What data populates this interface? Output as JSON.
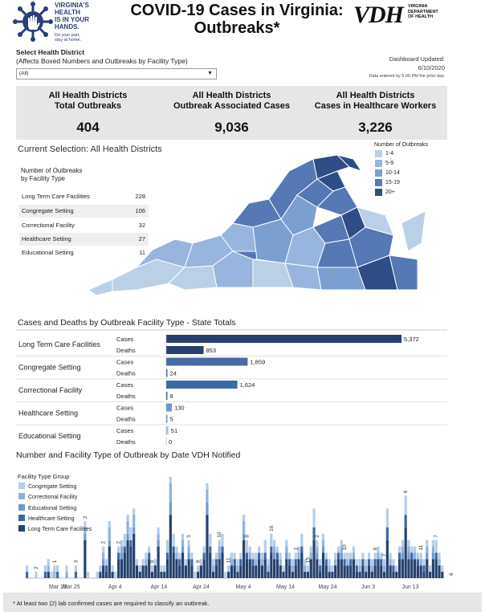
{
  "header": {
    "logo_lines": [
      "VIRGINIA'S",
      "HEALTH",
      "IS IN YOUR",
      "HANDS."
    ],
    "logo_small": [
      "Do your part,",
      "stay at home."
    ],
    "title_line1": "COVID-19 Cases in Virginia:",
    "title_line2": "Outbreaks*",
    "vdh_mark": "VDH",
    "vdh_sub": [
      "VIRGINIA",
      "DEPARTMENT",
      "OF HEALTH"
    ]
  },
  "filter": {
    "label": "Select Health District",
    "sublabel": "(Affects Boxed Numbers and Outbreaks by Facility Type)",
    "selected": "(All)"
  },
  "updated": {
    "label": "Dashboard Updated:",
    "date": "6/10/2020",
    "note": "Data entered by 5:00 PM the prior day."
  },
  "kpis": [
    {
      "line1": "All Health Districts",
      "line2": "Total Outbreaks",
      "value": "404"
    },
    {
      "line1": "All Health Districts",
      "line2": "Outbreak Associated Cases",
      "value": "9,036"
    },
    {
      "line1": "All Health Districts",
      "line2": "Cases in Healthcare Workers",
      "value": "3,226"
    }
  ],
  "selection_title": "Current Selection: All Health Districts",
  "facility_table": {
    "title_line1": "Number of Outbreaks",
    "title_line2": "by Facility Type",
    "rows": [
      {
        "name": "Long Term Care Facilities",
        "value": "228"
      },
      {
        "name": "Congregate Setting",
        "value": "106"
      },
      {
        "name": "Correctional Facility",
        "value": "32"
      },
      {
        "name": "Healthcare Setting",
        "value": "27"
      },
      {
        "name": "Educational Setting",
        "value": "11"
      }
    ]
  },
  "map_legend": {
    "title": "Number of Outbreaks",
    "items": [
      {
        "label": "1-4",
        "color": "#b9d0e8"
      },
      {
        "label": "5-9",
        "color": "#96b6df"
      },
      {
        "label": "10-14",
        "color": "#7aa0d2"
      },
      {
        "label": "15-19",
        "color": "#5479b4"
      },
      {
        "label": "20+",
        "color": "#2e4d86"
      }
    ]
  },
  "chart_data": [
    {
      "type": "bar",
      "title": "Cases and Deaths by Outbreak Facility Type - State Totals",
      "orientation": "horizontal",
      "categories": [
        "Long Term Care Facilities",
        "Congregate Setting",
        "Correctional Facility",
        "Healthcare Setting",
        "Educational Setting"
      ],
      "series": [
        {
          "name": "Cases",
          "values": [
            5372,
            1859,
            1624,
            130,
            51
          ]
        },
        {
          "name": "Deaths",
          "values": [
            853,
            24,
            8,
            5,
            0
          ]
        }
      ],
      "value_labels": {
        "Cases": [
          "5,372",
          "1,859",
          "1,624",
          "130",
          "51"
        ],
        "Deaths": [
          "853",
          "24",
          "8",
          "5",
          "0"
        ]
      },
      "colors": {
        "Long Term Care Facilities": "#26416e",
        "Congregate Setting": "#4a6aa3",
        "Correctional Facility": "#3d69a8",
        "Healthcare Setting": "#6d97d0",
        "Educational Setting": "#a9c6e9"
      },
      "xlim": [
        0,
        5500
      ]
    },
    {
      "type": "bar",
      "stacked": true,
      "title": "Number and Facility Type of Outbreak by Date VDH Notified",
      "legend_title": "Facility Type Group",
      "x_tick_labels": [
        "Mar 15",
        "Mar 25",
        "Apr 4",
        "Apr 14",
        "Apr 24",
        "May 4",
        "May 14",
        "May 24",
        "Jun 3",
        "Jun 13"
      ],
      "x_start": "Mar 11",
      "x_end": "Jun 13",
      "series": [
        {
          "name": "Congregate Setting",
          "color": "#b4cde9"
        },
        {
          "name": "Correctional Facility",
          "color": "#8db1de"
        },
        {
          "name": "Educational Setting",
          "color": "#6f9ad2"
        },
        {
          "name": "Healthcare Setting",
          "color": "#3f67a6"
        },
        {
          "name": "Long Term Care Facilities",
          "color": "#26416e"
        }
      ],
      "totals": [
        2,
        0,
        0,
        1,
        0,
        0,
        2,
        3,
        1,
        2,
        2,
        0,
        0,
        2,
        0,
        0,
        2,
        0,
        0,
        9,
        1,
        0,
        0,
        1,
        2,
        5,
        3,
        9,
        2,
        1,
        5,
        6,
        7,
        10,
        8,
        11,
        3,
        2,
        3,
        4,
        5,
        2,
        3,
        8,
        2,
        2,
        6,
        16,
        7,
        5,
        4,
        7,
        3,
        6,
        4,
        1,
        2,
        3,
        5,
        15,
        7,
        3,
        4,
        6,
        7,
        1,
        2,
        4,
        4,
        3,
        4,
        10,
        6,
        5,
        4,
        4,
        5,
        4,
        6,
        3,
        7,
        6,
        5,
        4,
        2,
        6,
        4,
        3,
        4,
        5,
        7,
        3,
        2,
        5,
        11,
        6,
        3,
        7,
        4,
        3,
        2,
        4,
        5,
        6,
        4,
        4,
        4,
        5,
        3,
        3,
        4,
        3,
        4,
        3,
        4,
        5,
        4,
        3,
        11,
        4,
        3,
        2,
        5,
        6,
        13,
        6,
        5,
        5,
        4,
        4,
        3,
        6,
        2,
        6,
        6,
        4,
        2
      ],
      "ltcf": [
        0,
        0,
        0,
        0,
        0,
        0,
        0,
        1,
        0,
        0,
        0,
        0,
        0,
        0,
        0,
        0,
        0,
        0,
        0,
        6,
        0,
        0,
        0,
        0,
        1,
        2,
        1,
        5,
        1,
        0,
        3,
        3,
        4,
        6,
        5,
        7,
        2,
        1,
        2,
        2,
        3,
        1,
        2,
        5,
        1,
        1,
        3,
        10,
        4,
        3,
        2,
        4,
        2,
        3,
        2,
        0,
        1,
        2,
        3,
        10,
        4,
        1,
        2,
        3,
        4,
        0,
        1,
        2,
        2,
        1,
        2,
        6,
        3,
        3,
        2,
        2,
        3,
        2,
        3,
        1,
        4,
        3,
        3,
        2,
        1,
        3,
        2,
        1,
        2,
        3,
        4,
        1,
        1,
        3,
        6,
        3,
        1,
        4,
        2,
        1,
        1,
        2,
        3,
        3,
        2,
        2,
        2,
        3,
        1,
        1,
        2,
        1,
        2,
        1,
        2,
        3,
        2,
        1,
        6,
        2,
        1,
        1,
        3,
        3,
        8,
        3,
        3,
        3,
        2,
        2,
        1,
        3,
        1,
        3,
        3,
        2,
        1
      ],
      "labels": [
        {
          "i": 3,
          "v": "2"
        },
        {
          "i": 9,
          "v": "1"
        },
        {
          "i": 16,
          "v": "3"
        },
        {
          "i": 19,
          "v": "2"
        },
        {
          "i": 25,
          "v": "2"
        },
        {
          "i": 30,
          "v": "2"
        },
        {
          "i": 41,
          "v": "9"
        },
        {
          "i": 53,
          "v": "5"
        },
        {
          "i": 56,
          "v": "9"
        },
        {
          "i": 63,
          "v": "10"
        },
        {
          "i": 66,
          "v": "11"
        },
        {
          "i": 72,
          "v": "8"
        },
        {
          "i": 80,
          "v": "16"
        },
        {
          "i": 88,
          "v": "1"
        },
        {
          "i": 92,
          "v": "15"
        },
        {
          "i": 95,
          "v": "2"
        },
        {
          "i": 104,
          "v": "10"
        },
        {
          "i": 114,
          "v": "6"
        },
        {
          "i": 117,
          "v": "7"
        },
        {
          "i": 124,
          "v": "6"
        },
        {
          "i": 129,
          "v": "11"
        },
        {
          "i": 134,
          "v": "7"
        },
        {
          "i": 139,
          "v": "6"
        },
        {
          "i": 143,
          "v": "2"
        },
        {
          "i": 148,
          "v": "4"
        },
        {
          "i": 153,
          "v": "5"
        },
        {
          "i": 157,
          "v": "11"
        },
        {
          "i": 162,
          "v": "5"
        },
        {
          "i": 167,
          "v": "13"
        },
        {
          "i": 174,
          "v": "5"
        },
        {
          "i": 176,
          "v": "6"
        }
      ],
      "ylim": [
        0,
        17
      ]
    }
  ],
  "footnote": "* At least two (2) lab confirmed cases are required to classify an outbreak."
}
